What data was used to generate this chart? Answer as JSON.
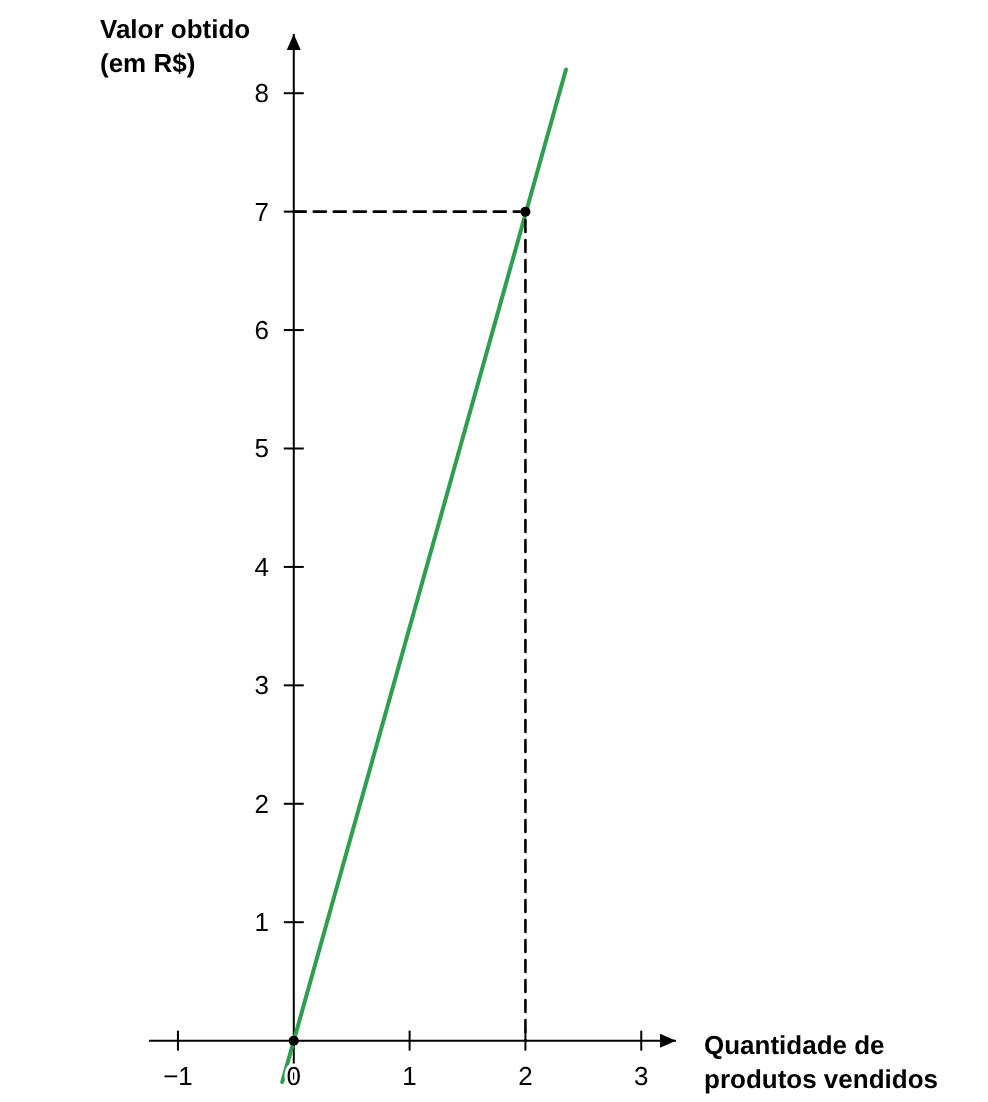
{
  "chart_data": {
    "type": "line",
    "xlabel": "Quantidade de\nprodutos vendidos",
    "ylabel": "Valor obtido\n(em R$)",
    "xlim": [
      -1.25,
      3.3
    ],
    "ylim": [
      -0.4,
      8.5
    ],
    "xticks": [
      {
        "value": -1,
        "label": "−1"
      },
      0,
      1,
      2,
      3
    ],
    "yticks": [
      1,
      2,
      3,
      4,
      5,
      6,
      7,
      8
    ],
    "series": [
      {
        "type": "line",
        "color": "#2e9e4f",
        "x": [
          -0.1,
          2.35
        ],
        "values": [
          -0.35,
          8.2
        ],
        "line_style": "solid"
      },
      {
        "type": "line",
        "color": "#000000",
        "x": [
          0,
          2,
          2
        ],
        "values": [
          7,
          7,
          0
        ],
        "line_style": "dashed"
      },
      {
        "type": "scatter",
        "color": "#000000",
        "x": [
          0,
          2
        ],
        "values": [
          0,
          7
        ],
        "marker": "circle"
      }
    ]
  }
}
